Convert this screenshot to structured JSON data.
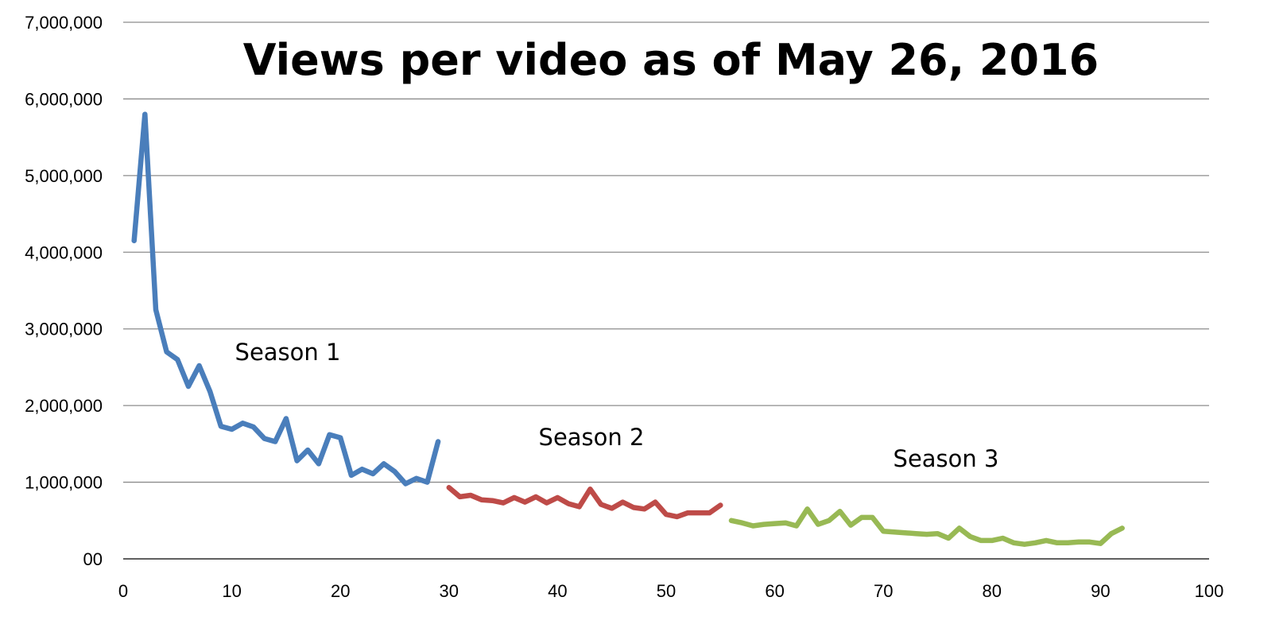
{
  "chart_data": {
    "type": "line",
    "title": "Views per video as of May 26, 2016",
    "xlabel": "",
    "ylabel": "",
    "xlim": [
      0,
      100
    ],
    "ylim": [
      0,
      7000000
    ],
    "x_ticks": [
      "0",
      "10",
      "20",
      "30",
      "40",
      "50",
      "60",
      "70",
      "80",
      "90",
      "100"
    ],
    "y_ticks": [
      "00",
      "1,000,000",
      "2,000,000",
      "3,000,000",
      "4,000,000",
      "5,000,000",
      "6,000,000",
      "7,000,000"
    ],
    "grid": "horizontal",
    "legend": "none",
    "series": [
      {
        "name": "Season 1",
        "color": "#4a7ebb",
        "x": [
          1,
          2,
          3,
          4,
          5,
          6,
          7,
          8,
          9,
          10,
          11,
          12,
          13,
          14,
          15,
          16,
          17,
          18,
          19,
          20,
          21,
          22,
          23,
          24,
          25,
          26,
          27,
          28,
          29
        ],
        "values": [
          4150000,
          5800000,
          3250000,
          2700000,
          2600000,
          2250000,
          2520000,
          2180000,
          1730000,
          1690000,
          1770000,
          1720000,
          1570000,
          1530000,
          1830000,
          1280000,
          1420000,
          1240000,
          1620000,
          1580000,
          1090000,
          1170000,
          1110000,
          1240000,
          1140000,
          980000,
          1050000,
          1000000,
          1530000
        ]
      },
      {
        "name": "Season 2",
        "color": "#be4b48",
        "x": [
          30,
          31,
          32,
          33,
          34,
          35,
          36,
          37,
          38,
          39,
          40,
          41,
          42,
          43,
          44,
          45,
          46,
          47,
          48,
          49,
          50,
          51,
          52,
          53,
          54,
          55
        ],
        "values": [
          930000,
          810000,
          830000,
          770000,
          760000,
          730000,
          800000,
          740000,
          810000,
          730000,
          800000,
          720000,
          680000,
          910000,
          710000,
          660000,
          740000,
          670000,
          650000,
          740000,
          580000,
          550000,
          600000,
          600000,
          600000,
          700000
        ],
        "label_pos": [
          43,
          1550000
        ]
      },
      {
        "name": "Season 3",
        "color": "#98b954",
        "x": [
          56,
          57,
          58,
          59,
          60,
          61,
          62,
          63,
          64,
          65,
          66,
          67,
          68,
          69,
          70,
          71,
          72,
          73,
          74,
          75,
          76,
          77,
          78,
          79,
          80,
          81,
          82,
          83,
          84,
          85,
          86,
          87,
          88,
          89,
          90,
          91,
          92
        ],
        "values": [
          500000,
          470000,
          430000,
          450000,
          460000,
          470000,
          430000,
          650000,
          450000,
          500000,
          620000,
          440000,
          540000,
          540000,
          360000,
          350000,
          340000,
          330000,
          320000,
          330000,
          270000,
          400000,
          290000,
          240000,
          240000,
          270000,
          210000,
          190000,
          210000,
          240000,
          210000,
          210000,
          220000,
          220000,
          200000,
          330000,
          400000
        ]
      }
    ]
  }
}
